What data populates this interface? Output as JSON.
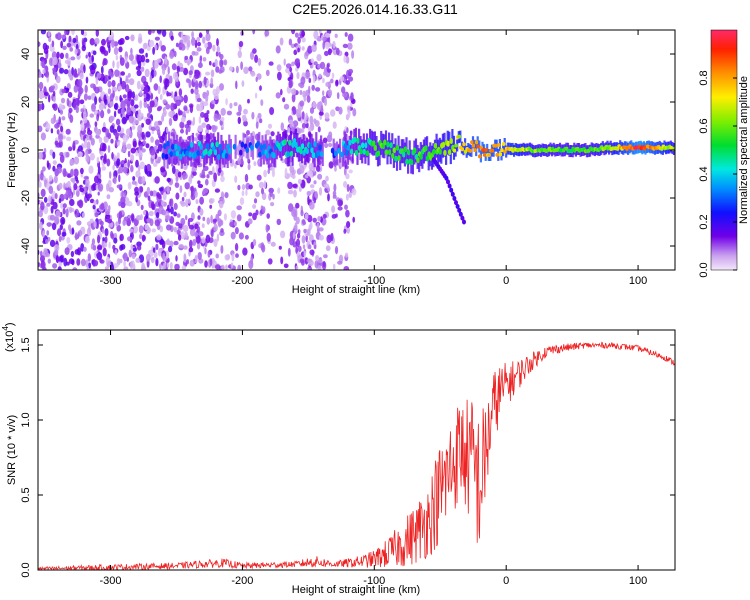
{
  "title": "C2E5.2026.014.16.33.G11",
  "colors": {
    "snr_line": "#ee2222",
    "axis": "#000000",
    "background": "#ffffff"
  },
  "chart_data": [
    {
      "type": "heatmap",
      "name": "spectrogram",
      "xlabel": "Height of straight line (km)",
      "ylabel": "Frequency (Hz)",
      "xlim": [
        -355,
        128
      ],
      "ylim": [
        -50,
        50
      ],
      "xticks": [
        "-300",
        "-200",
        "-100",
        "0",
        "100"
      ],
      "xtick_values": [
        -300,
        -200,
        -100,
        0,
        100
      ],
      "yticks": [
        "-40",
        "-20",
        "0",
        "20",
        "40"
      ],
      "ytick_values": [
        -40,
        -20,
        0,
        20,
        40
      ],
      "colorbar": {
        "label": "Normalized spectral amplitude",
        "range": [
          0,
          1
        ],
        "ticks": [
          "0.0",
          "0.2",
          "0.4",
          "0.6",
          "0.8"
        ],
        "tick_values": [
          0.0,
          0.2,
          0.4,
          0.6,
          0.8
        ]
      },
      "trace_height_km": [
        -355,
        -300,
        -260,
        -220,
        -200,
        -160,
        -130,
        -110,
        -90,
        -70,
        -50,
        -35,
        -20,
        0,
        20,
        40,
        60,
        80,
        100,
        128
      ],
      "trace_frequency_hz": [
        0,
        0,
        0,
        0,
        0,
        1,
        0,
        2,
        0,
        -3,
        1,
        3,
        0,
        0,
        0,
        0,
        0,
        1,
        1,
        1
      ],
      "trace_amplitude": [
        0.15,
        0.2,
        0.3,
        0.4,
        0.25,
        0.45,
        0.3,
        0.45,
        0.55,
        0.5,
        0.6,
        0.7,
        0.85,
        0.75,
        0.6,
        0.55,
        0.55,
        0.65,
        0.95,
        0.6
      ],
      "side_branch": {
        "height_km": [
          -55,
          -45,
          -38,
          -32
        ],
        "frequency_hz": [
          -4,
          -12,
          -22,
          -30
        ]
      }
    },
    {
      "type": "line",
      "name": "snr",
      "xlabel": "Height of straight line (km)",
      "ylabel": "SNR (10 * v/v)",
      "scale_label": "(x10",
      "scale_exponent": "4",
      "xlim": [
        -355,
        128
      ],
      "ylim": [
        0,
        1.6
      ],
      "xticks": [
        "-300",
        "-200",
        "-100",
        "0",
        "100"
      ],
      "xtick_values": [
        -300,
        -200,
        -100,
        0,
        100
      ],
      "yticks": [
        "0.0",
        "0.5",
        "1.0",
        "1.5"
      ],
      "ytick_values": [
        0.0,
        0.5,
        1.0,
        1.5
      ],
      "x": [
        -355,
        -300,
        -250,
        -215,
        -200,
        -160,
        -145,
        -130,
        -110,
        -100,
        -90,
        -80,
        -70,
        -60,
        -55,
        -50,
        -45,
        -40,
        -35,
        -30,
        -25,
        -20,
        -15,
        -10,
        -5,
        0,
        10,
        20,
        30,
        40,
        60,
        80,
        100,
        110,
        120,
        128
      ],
      "y": [
        0.01,
        0.02,
        0.03,
        0.05,
        0.03,
        0.04,
        0.06,
        0.04,
        0.06,
        0.08,
        0.12,
        0.18,
        0.25,
        0.35,
        0.45,
        0.55,
        0.65,
        0.75,
        0.85,
        0.8,
        0.75,
        0.6,
        0.85,
        1.1,
        1.2,
        1.25,
        1.32,
        1.4,
        1.46,
        1.48,
        1.5,
        1.5,
        1.48,
        1.45,
        1.42,
        1.38
      ],
      "noise": [
        0.01,
        0.02,
        0.02,
        0.03,
        0.02,
        0.02,
        0.04,
        0.02,
        0.04,
        0.06,
        0.1,
        0.15,
        0.2,
        0.25,
        0.3,
        0.35,
        0.35,
        0.35,
        0.35,
        0.4,
        0.45,
        0.5,
        0.35,
        0.25,
        0.2,
        0.15,
        0.1,
        0.06,
        0.04,
        0.03,
        0.02,
        0.02,
        0.02,
        0.02,
        0.02,
        0.02
      ]
    }
  ]
}
